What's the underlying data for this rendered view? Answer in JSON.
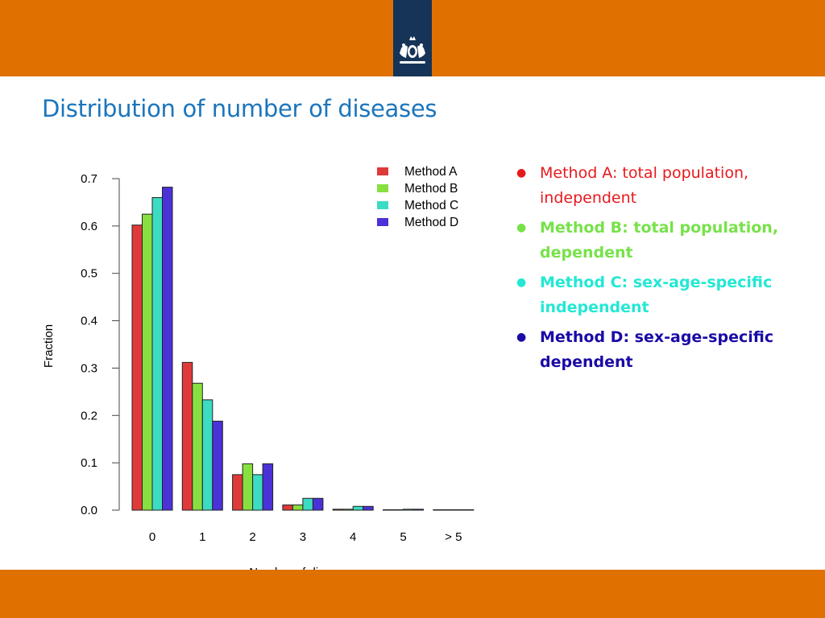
{
  "slide": {
    "title": "Distribution of number of diseases",
    "colors": {
      "bar_orange": "#e07000",
      "logo_navy": "#153457",
      "title_blue": "#1b75bc"
    },
    "logo_icon": "coat-of-arms-icon"
  },
  "bullets": [
    {
      "text": "Method A: total population, independent",
      "color": "#e8191d",
      "bold": false
    },
    {
      "text": "Method B: total population, dependent",
      "color": "#77e24a",
      "bold": true
    },
    {
      "text": "Method C: sex-age-specific independent",
      "color": "#24e8d4",
      "bold": true
    },
    {
      "text": "Method D: sex-age-specific dependent",
      "color": "#1a0aa6",
      "bold": true
    }
  ],
  "chart_data": {
    "type": "bar",
    "categories": [
      "0",
      "1",
      "2",
      "3",
      "4",
      "5",
      "> 5"
    ],
    "series": [
      {
        "name": "Method A",
        "color": "#df3a3a",
        "values": [
          0.602,
          0.312,
          0.075,
          0.011,
          0.002,
          0.001,
          0.001
        ]
      },
      {
        "name": "Method B",
        "color": "#88e040",
        "values": [
          0.625,
          0.268,
          0.098,
          0.011,
          0.002,
          0.001,
          0.001
        ]
      },
      {
        "name": "Method C",
        "color": "#3cdcc2",
        "values": [
          0.66,
          0.233,
          0.075,
          0.025,
          0.008,
          0.002,
          0.001
        ]
      },
      {
        "name": "Method D",
        "color": "#4a32d8",
        "values": [
          0.682,
          0.188,
          0.098,
          0.025,
          0.008,
          0.002,
          0.001
        ]
      }
    ],
    "xlabel": "Number of diseases",
    "ylabel": "Fraction",
    "ylim": [
      0,
      0.7
    ],
    "yticks": [
      "0.0",
      "0.1",
      "0.2",
      "0.3",
      "0.4",
      "0.5",
      "0.6",
      "0.7"
    ],
    "legend": "top-right",
    "grid": false
  }
}
